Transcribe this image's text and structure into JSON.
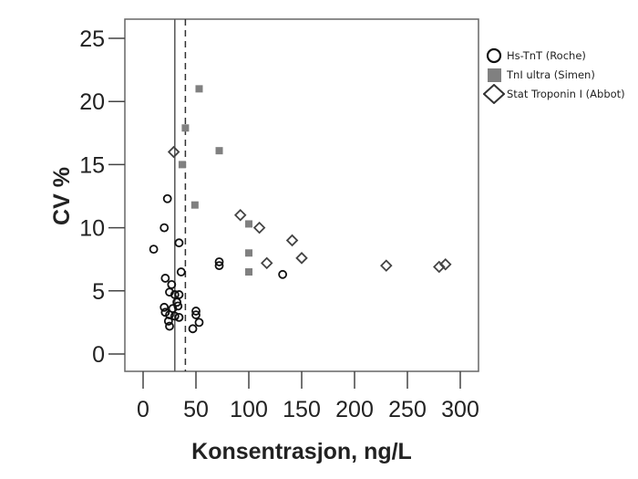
{
  "chart_data": {
    "type": "scatter",
    "title": "",
    "xlabel": "Konsentrasjon, ng/L",
    "ylabel": "CV %",
    "xlim": [
      -15,
      315
    ],
    "ylim": [
      -1.4,
      26.5
    ],
    "xticks": [
      0,
      50,
      100,
      150,
      200,
      250,
      300
    ],
    "yticks": [
      0,
      5,
      10,
      15,
      20,
      25
    ],
    "grid": false,
    "legend_position": "right",
    "reference_lines": [
      {
        "x": 30,
        "style": "solid",
        "color": "#555555"
      },
      {
        "x": 40,
        "style": "dashed",
        "color": "#333333"
      }
    ],
    "series": [
      {
        "name": "Hs-TnT (Roche)",
        "marker": "circle-open",
        "color": "#111111",
        "points": [
          [
            23,
            12.3
          ],
          [
            20,
            10.0
          ],
          [
            34,
            8.8
          ],
          [
            10,
            8.3
          ],
          [
            36,
            6.5
          ],
          [
            21,
            6.0
          ],
          [
            27,
            5.5
          ],
          [
            25,
            4.9
          ],
          [
            30,
            4.7
          ],
          [
            34,
            4.7
          ],
          [
            32,
            4.1
          ],
          [
            33,
            3.8
          ],
          [
            20,
            3.7
          ],
          [
            28,
            3.6
          ],
          [
            21,
            3.3
          ],
          [
            25,
            3.1
          ],
          [
            30,
            3.0
          ],
          [
            34,
            2.9
          ],
          [
            24,
            2.6
          ],
          [
            25,
            2.2
          ],
          [
            50,
            3.4
          ],
          [
            50,
            3.1
          ],
          [
            53,
            2.5
          ],
          [
            47,
            2.0
          ],
          [
            72,
            7.3
          ],
          [
            72,
            7.0
          ],
          [
            132,
            6.3
          ]
        ]
      },
      {
        "name": "TnI ultra (Simen)",
        "marker": "square-filled",
        "color": "#808080",
        "points": [
          [
            53,
            21.0
          ],
          [
            40,
            17.9
          ],
          [
            72,
            16.1
          ],
          [
            37,
            15.0
          ],
          [
            49,
            11.8
          ],
          [
            100,
            10.3
          ],
          [
            100,
            8.0
          ],
          [
            100,
            6.5
          ]
        ]
      },
      {
        "name": "Stat Troponin I (Abbot)",
        "marker": "diamond-open",
        "color": "#444444",
        "points": [
          [
            29,
            16.0
          ],
          [
            92,
            11.0
          ],
          [
            110,
            10.0
          ],
          [
            141,
            9.0
          ],
          [
            117,
            7.2
          ],
          [
            150,
            7.6
          ],
          [
            230,
            7.0
          ],
          [
            280,
            6.9
          ],
          [
            286,
            7.1
          ]
        ]
      }
    ]
  },
  "legend": {
    "items": [
      {
        "label": "Hs-TnT (Roche)",
        "icon": "open-circle-icon"
      },
      {
        "label": "TnI ultra (Simen)",
        "icon": "filled-square-icon"
      },
      {
        "label": "Stat Troponin I (Abbot)",
        "icon": "open-diamond-icon"
      }
    ]
  }
}
